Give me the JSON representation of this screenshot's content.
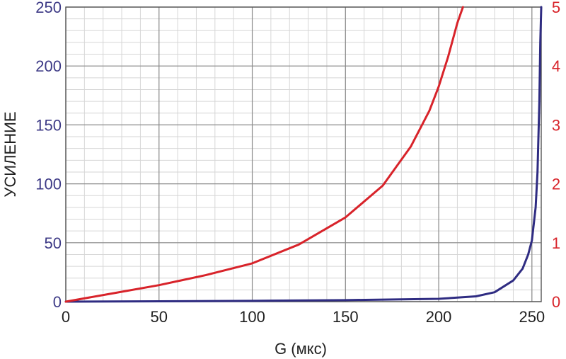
{
  "chart_data": {
    "type": "line",
    "xlabel": "G (мкс)",
    "ylabel": "УСИЛЕНИЕ",
    "y2label": "",
    "xlim": [
      0,
      255
    ],
    "ylim": [
      0,
      250
    ],
    "y2lim": [
      0,
      5
    ],
    "x_ticks": [
      "0",
      "50",
      "100",
      "150",
      "200",
      "250"
    ],
    "y_ticks": [
      "0",
      "50",
      "100",
      "150",
      "200",
      "250"
    ],
    "y2_ticks": [
      "0",
      "1",
      "2",
      "3",
      "4",
      "5"
    ],
    "grid": true,
    "colors": {
      "left_axis": "#3d3a86",
      "right_axis": "#d8232a",
      "grid_major": "#8a8a8a",
      "grid_minor": "#d6d6d6"
    },
    "series": [
      {
        "axis": "left",
        "color": "#2f2c82",
        "x": [
          0,
          50,
          100,
          150,
          200,
          220,
          230,
          240,
          245,
          248,
          250,
          252,
          253,
          254,
          254.5,
          255
        ],
        "y": [
          0,
          0.3,
          0.7,
          1.3,
          2.4,
          4.5,
          8,
          18,
          28,
          40,
          52,
          80,
          110,
          170,
          220,
          250
        ]
      },
      {
        "axis": "right",
        "color": "#d8232a",
        "x": [
          0,
          25,
          50,
          75,
          100,
          125,
          150,
          170,
          185,
          195,
          200,
          205,
          210,
          213
        ],
        "y": [
          0,
          0.14,
          0.28,
          0.45,
          0.65,
          0.97,
          1.43,
          1.97,
          2.63,
          3.24,
          3.65,
          4.15,
          4.73,
          5.0
        ]
      }
    ]
  }
}
